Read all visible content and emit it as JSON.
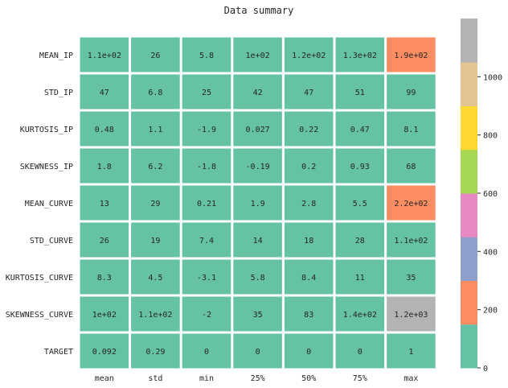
{
  "chart_data": {
    "type": "heatmap",
    "title": "Data summary",
    "rows": [
      "MEAN_IP",
      "STD_IP",
      "KURTOSIS_IP",
      "SKEWNESS_IP",
      "MEAN_CURVE",
      "STD_CURVE",
      "KURTOSIS_CURVE",
      "SKEWNESS_CURVE",
      "TARGET"
    ],
    "columns": [
      "mean",
      "std",
      "min",
      "25%",
      "50%",
      "75%",
      "max"
    ],
    "values": [
      [
        111,
        26,
        5.8,
        100,
        120,
        130,
        190
      ],
      [
        47,
        6.8,
        25,
        42,
        47,
        51,
        99
      ],
      [
        0.48,
        1.1,
        -1.9,
        0.027,
        0.22,
        0.47,
        8.1
      ],
      [
        1.8,
        6.2,
        -1.8,
        -0.19,
        0.2,
        0.93,
        68
      ],
      [
        13,
        29,
        0.21,
        1.9,
        2.8,
        5.5,
        220
      ],
      [
        26,
        19,
        7.4,
        14,
        18,
        28,
        110
      ],
      [
        8.3,
        4.5,
        -3.1,
        5.8,
        8.4,
        11,
        35
      ],
      [
        100,
        110,
        -2,
        35,
        83,
        140,
        1200
      ],
      [
        0.092,
        0.29,
        0,
        0,
        0,
        0,
        1
      ]
    ],
    "labels": [
      [
        "1.1e+02",
        "26",
        "5.8",
        "1e+02",
        "1.2e+02",
        "1.3e+02",
        "1.9e+02"
      ],
      [
        "47",
        "6.8",
        "25",
        "42",
        "47",
        "51",
        "99"
      ],
      [
        "0.48",
        "1.1",
        "-1.9",
        "0.027",
        "0.22",
        "0.47",
        "8.1"
      ],
      [
        "1.8",
        "6.2",
        "-1.8",
        "-0.19",
        "0.2",
        "0.93",
        "68"
      ],
      [
        "13",
        "29",
        "0.21",
        "1.9",
        "2.8",
        "5.5",
        "2.2e+02"
      ],
      [
        "26",
        "19",
        "7.4",
        "14",
        "18",
        "28",
        "1.1e+02"
      ],
      [
        "8.3",
        "4.5",
        "-3.1",
        "5.8",
        "8.4",
        "11",
        "35"
      ],
      [
        "1e+02",
        "1.1e+02",
        "-2",
        "35",
        "83",
        "1.4e+02",
        "1.2e+03"
      ],
      [
        "0.092",
        "0.29",
        "0",
        "0",
        "0",
        "0",
        "1"
      ]
    ],
    "colormap": {
      "name": "Set2",
      "vmin": 0,
      "vmax": 1200,
      "colors": [
        "#66c2a5",
        "#fc8d62",
        "#8da0cb",
        "#e78ac3",
        "#a6d854",
        "#ffd92f",
        "#e5c494",
        "#b3b3b3"
      ]
    },
    "colorbar": {
      "ticks": [
        0,
        200,
        400,
        600,
        800,
        1000
      ]
    },
    "grid_line_color": "#ffffff"
  }
}
